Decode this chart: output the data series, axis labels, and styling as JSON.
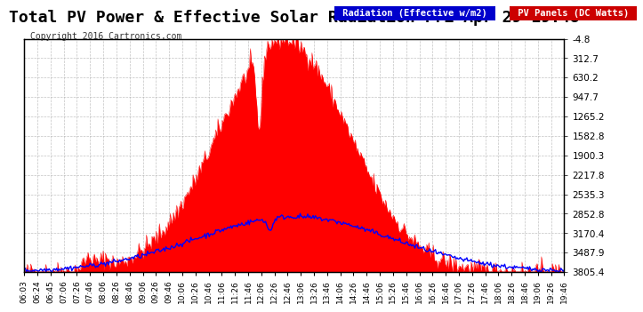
{
  "title": "Total PV Power & Effective Solar Radiation Fri Apr 29 19:48",
  "copyright": "Copyright 2016 Cartronics.com",
  "background_color": "#ffffff",
  "plot_bg_color": "#ffffff",
  "grid_color": "#aaaaaa",
  "title_color": "#000000",
  "title_fontsize": 13,
  "ylabel_right": [
    "3805.4",
    "3487.9",
    "3170.4",
    "2852.8",
    "2535.3",
    "2217.8",
    "1900.3",
    "1582.8",
    "1265.2",
    "947.7",
    "630.2",
    "312.7",
    "-4.8"
  ],
  "ymin": -4.8,
  "ymax": 3805.4,
  "legend_radiation_color": "#0000ff",
  "legend_pv_color": "#ff0000",
  "legend_radiation_bg": "#0000cc",
  "legend_pv_bg": "#cc0000",
  "fill_color": "#ff0000",
  "line_color": "#0000ff",
  "x_tick_labels": [
    "06:03",
    "06:24",
    "06:45",
    "07:06",
    "07:26",
    "07:46",
    "08:06",
    "08:26",
    "08:46",
    "09:06",
    "09:26",
    "09:46",
    "10:06",
    "10:26",
    "10:46",
    "11:06",
    "11:26",
    "11:46",
    "12:06",
    "12:26",
    "12:46",
    "13:06",
    "13:26",
    "13:46",
    "14:06",
    "14:26",
    "14:46",
    "15:06",
    "15:26",
    "15:46",
    "16:06",
    "16:26",
    "16:46",
    "17:06",
    "17:26",
    "17:46",
    "18:06",
    "18:26",
    "18:46",
    "19:06",
    "19:26",
    "19:46"
  ],
  "num_points": 42
}
